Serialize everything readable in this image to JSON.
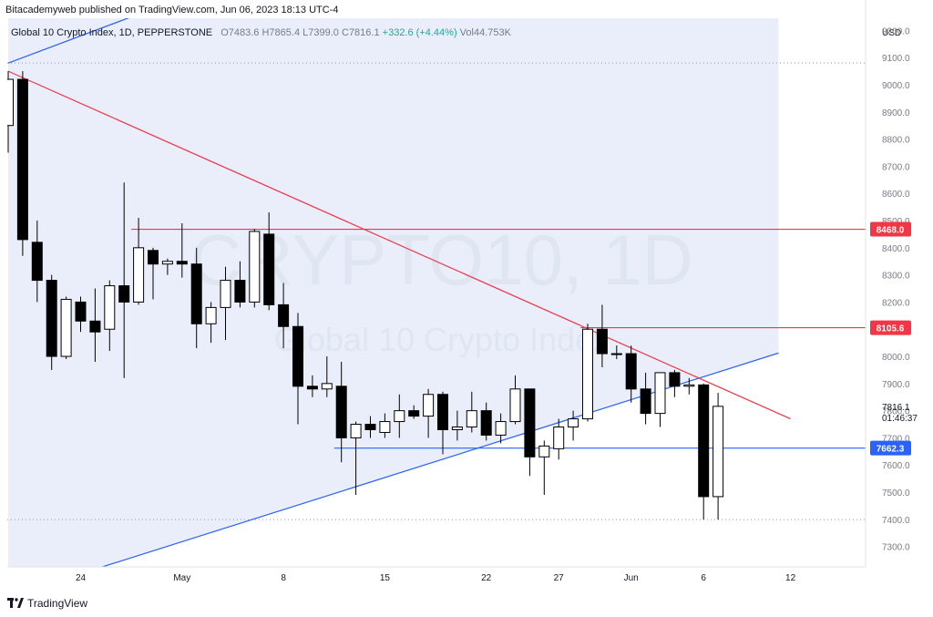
{
  "header": {
    "publisher_text": "Bitacademyweb published on TradingView.com, Jun 06, 2023 18:13 UTC-4"
  },
  "legend": {
    "title": "Global 10 Crypto Index, 1D, PEPPERSTONE",
    "open_label": "O",
    "open": "7483.6",
    "high_label": "H",
    "high": "7865.4",
    "low_label": "L",
    "low": "7399.0",
    "close_label": "C",
    "close": "7816.1",
    "change": "+332.6 (+4.44%)",
    "volume_label": "Vol",
    "volume": "44.753K"
  },
  "watermark": {
    "symbol": "CRYPTO10, 1D",
    "description": "Global 10 Crypto Index"
  },
  "footer": {
    "brand": "TradingView"
  },
  "colors": {
    "up_candle": "#ffffff",
    "down_candle": "#000000",
    "candle_border": "#000000",
    "shade": "#e8ecfb",
    "trendline_blue": "#2962ff",
    "trendline_red": "#f23645",
    "label_red": "#f23645",
    "label_blue": "#2962ff",
    "axis_text": "#787b86"
  },
  "chart_data": {
    "type": "candlestick",
    "currency": "USD",
    "ylim": [
      7225,
      9245
    ],
    "y_ticks": [
      9200,
      9100,
      9000,
      8900,
      8800,
      8700,
      8600,
      8500,
      8400,
      8300,
      8200,
      8100,
      8000,
      7900,
      7800,
      7700,
      7600,
      7500,
      7400,
      7300
    ],
    "y_tick_labels": [
      "9200.0",
      "9100.0",
      "9000.0",
      "8900.0",
      "8800.0",
      "8700.0",
      "8600.0",
      "8500.0",
      "8400.0",
      "8300.0",
      "8200.0",
      "8100.0",
      "8000.0",
      "7900.0",
      "7800.0",
      "7700.0",
      "7600.0",
      "7500.0",
      "7400.0",
      "7300.0"
    ],
    "x_tick_labels": [
      {
        "label": "24",
        "day": 5
      },
      {
        "label": "May",
        "day": 12
      },
      {
        "label": "8",
        "day": 19
      },
      {
        "label": "15",
        "day": 26
      },
      {
        "label": "22",
        "day": 33
      },
      {
        "label": "27",
        "day": 38
      },
      {
        "label": "Jun",
        "day": 43
      },
      {
        "label": "6",
        "day": 48
      },
      {
        "label": "12",
        "day": 54
      }
    ],
    "candles": [
      {
        "day": 0,
        "o": 8850,
        "h": 9050,
        "l": 8750,
        "c": 9020
      },
      {
        "day": 1,
        "o": 9020,
        "h": 9050,
        "l": 8370,
        "c": 8430
      },
      {
        "day": 2,
        "o": 8420,
        "h": 8500,
        "l": 8200,
        "c": 8280
      },
      {
        "day": 3,
        "o": 8280,
        "h": 8300,
        "l": 7950,
        "c": 8000
      },
      {
        "day": 4,
        "o": 8000,
        "h": 8220,
        "l": 7990,
        "c": 8210
      },
      {
        "day": 5,
        "o": 8200,
        "h": 8220,
        "l": 8090,
        "c": 8130
      },
      {
        "day": 6,
        "o": 8130,
        "h": 8250,
        "l": 7980,
        "c": 8090
      },
      {
        "day": 7,
        "o": 8100,
        "h": 8280,
        "l": 8020,
        "c": 8260
      },
      {
        "day": 8,
        "o": 8260,
        "h": 8640,
        "l": 7920,
        "c": 8200
      },
      {
        "day": 9,
        "o": 8200,
        "h": 8510,
        "l": 8190,
        "c": 8400
      },
      {
        "day": 10,
        "o": 8390,
        "h": 8400,
        "l": 8210,
        "c": 8340
      },
      {
        "day": 11,
        "o": 8340,
        "h": 8360,
        "l": 8300,
        "c": 8350
      },
      {
        "day": 12,
        "o": 8350,
        "h": 8490,
        "l": 8290,
        "c": 8340
      },
      {
        "day": 13,
        "o": 8340,
        "h": 8400,
        "l": 8030,
        "c": 8120
      },
      {
        "day": 14,
        "o": 8120,
        "h": 8200,
        "l": 8050,
        "c": 8180
      },
      {
        "day": 15,
        "o": 8180,
        "h": 8330,
        "l": 8060,
        "c": 8280
      },
      {
        "day": 16,
        "o": 8280,
        "h": 8350,
        "l": 8180,
        "c": 8200
      },
      {
        "day": 17,
        "o": 8200,
        "h": 8470,
        "l": 8180,
        "c": 8460
      },
      {
        "day": 18,
        "o": 8450,
        "h": 8530,
        "l": 8170,
        "c": 8190
      },
      {
        "day": 19,
        "o": 8190,
        "h": 8270,
        "l": 8030,
        "c": 8110
      },
      {
        "day": 20,
        "o": 8110,
        "h": 8160,
        "l": 7750,
        "c": 7890
      },
      {
        "day": 21,
        "o": 7890,
        "h": 7930,
        "l": 7850,
        "c": 7880
      },
      {
        "day": 22,
        "o": 7880,
        "h": 8000,
        "l": 7850,
        "c": 7900
      },
      {
        "day": 23,
        "o": 7890,
        "h": 7980,
        "l": 7610,
        "c": 7700
      },
      {
        "day": 24,
        "o": 7700,
        "h": 7760,
        "l": 7490,
        "c": 7750
      },
      {
        "day": 25,
        "o": 7750,
        "h": 7780,
        "l": 7700,
        "c": 7730
      },
      {
        "day": 26,
        "o": 7720,
        "h": 7790,
        "l": 7700,
        "c": 7760
      },
      {
        "day": 27,
        "o": 7760,
        "h": 7860,
        "l": 7700,
        "c": 7800
      },
      {
        "day": 28,
        "o": 7800,
        "h": 7820,
        "l": 7770,
        "c": 7780
      },
      {
        "day": 29,
        "o": 7780,
        "h": 7880,
        "l": 7700,
        "c": 7860
      },
      {
        "day": 30,
        "o": 7860,
        "h": 7870,
        "l": 7640,
        "c": 7730
      },
      {
        "day": 31,
        "o": 7730,
        "h": 7800,
        "l": 7690,
        "c": 7740
      },
      {
        "day": 32,
        "o": 7740,
        "h": 7870,
        "l": 7720,
        "c": 7800
      },
      {
        "day": 33,
        "o": 7800,
        "h": 7830,
        "l": 7690,
        "c": 7710
      },
      {
        "day": 34,
        "o": 7710,
        "h": 7790,
        "l": 7680,
        "c": 7760
      },
      {
        "day": 35,
        "o": 7760,
        "h": 7930,
        "l": 7750,
        "c": 7880
      },
      {
        "day": 36,
        "o": 7880,
        "h": 7880,
        "l": 7560,
        "c": 7630
      },
      {
        "day": 37,
        "o": 7630,
        "h": 7690,
        "l": 7490,
        "c": 7670
      },
      {
        "day": 38,
        "o": 7660,
        "h": 7770,
        "l": 7620,
        "c": 7740
      },
      {
        "day": 39,
        "o": 7740,
        "h": 7800,
        "l": 7690,
        "c": 7770
      },
      {
        "day": 40,
        "o": 7770,
        "h": 8120,
        "l": 7760,
        "c": 8100
      },
      {
        "day": 41,
        "o": 8100,
        "h": 8190,
        "l": 7960,
        "c": 8010
      },
      {
        "day": 42,
        "o": 8010,
        "h": 8040,
        "l": 7990,
        "c": 8010
      },
      {
        "day": 43,
        "o": 8010,
        "h": 8040,
        "l": 7830,
        "c": 7880
      },
      {
        "day": 44,
        "o": 7880,
        "h": 7940,
        "l": 7750,
        "c": 7790
      },
      {
        "day": 45,
        "o": 7790,
        "h": 7940,
        "l": 7740,
        "c": 7940
      },
      {
        "day": 46,
        "o": 7940,
        "h": 7950,
        "l": 7850,
        "c": 7890
      },
      {
        "day": 47,
        "o": 7890,
        "h": 7920,
        "l": 7860,
        "c": 7895
      },
      {
        "day": 48,
        "o": 7895,
        "h": 7900,
        "l": 7399,
        "c": 7483.6
      },
      {
        "day": 49,
        "o": 7483.6,
        "h": 7865.4,
        "l": 7399,
        "c": 7816.1
      }
    ],
    "drawings": {
      "shaded_region": {
        "day_start": 0,
        "day_end": 56,
        "top": 9260,
        "bottom": 7225
      },
      "lower_trendline": {
        "start": {
          "day": 6.5,
          "price": 7225
        },
        "end": {
          "day": 56,
          "price": 8060
        },
        "color": "#2962ff"
      },
      "upper_trendline": {
        "start": {
          "day": 0,
          "price": 9080
        },
        "end": {
          "day": 10,
          "price": 9280
        },
        "color": "#2962ff"
      },
      "descending_trendline": {
        "start": {
          "day": 0,
          "price": 9050
        },
        "end": {
          "day": 54,
          "price": 7770
        },
        "color": "#f23645"
      },
      "resistance_lines": [
        {
          "price": 8468.0,
          "from_day": 8.5,
          "label": "8468.0",
          "color": "#f23645"
        },
        {
          "price": 8105.6,
          "from_day": 39.5,
          "label": "8105.6",
          "color": "#f23645"
        }
      ],
      "support_line": {
        "price": 7662.3,
        "from_day": 22.5,
        "label": "7662.3",
        "color": "#2962ff"
      },
      "dotted_lines": [
        9080,
        7399
      ]
    },
    "last_price_label": "7816.1",
    "countdown_label": "01:46:37"
  }
}
